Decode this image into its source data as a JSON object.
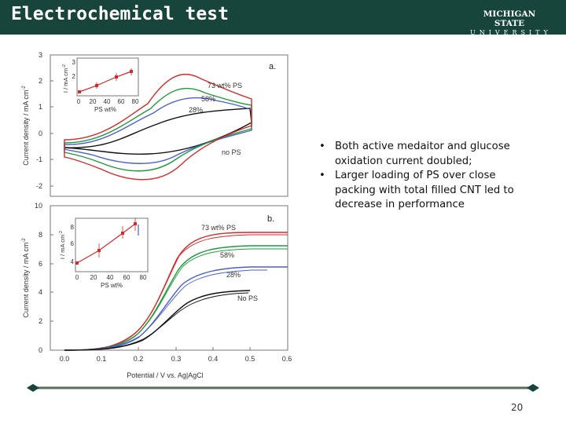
{
  "slide": {
    "title": "Electrochemical test",
    "logo": {
      "line1": "MICHIGAN STATE",
      "line2": "UNIVERSITY"
    },
    "bullets": [
      {
        "marker": "•",
        "text": "Both active medaitor and glucose oxidation current doubled;"
      },
      {
        "marker": "•",
        "text": "Larger loading of PS over close packing with total filled CNT led to decrease in performance"
      }
    ],
    "page_number": "20",
    "colors": {
      "header": "#18453b",
      "red": "#d42a2a",
      "green": "#1f9a3a",
      "blue": "#4a5fd0",
      "black": "#111111"
    }
  },
  "chart_data": [
    {
      "type": "line",
      "panel_label": "a.",
      "ylabel": "Current density / mA cm",
      "ylabel_sup": "-2",
      "y_ticks": [
        "3",
        "2",
        "1",
        "0",
        "-1",
        "-2"
      ],
      "ylim": [
        -2.2,
        3.0
      ],
      "series": [
        {
          "name": "73 wt% PS",
          "color": "#d42a2a"
        },
        {
          "name": "58%",
          "color": "#1f9a3a"
        },
        {
          "name": "28%",
          "color": "#4a5fd0"
        },
        {
          "name": "no PS",
          "color": "#111111"
        }
      ],
      "inset": {
        "xlabel": "PS wt%",
        "ylabel": "I / mA cm",
        "ylabel_sup": "-2",
        "x_ticks": [
          "0",
          "20",
          "40",
          "60",
          "80"
        ],
        "y_ticks": [
          "3",
          "2"
        ],
        "points": [
          [
            0,
            1.5
          ],
          [
            28,
            1.8
          ],
          [
            58,
            2.2
          ],
          [
            73,
            2.4
          ]
        ]
      }
    },
    {
      "type": "line",
      "panel_label": "b.",
      "xlabel": "Potential / V vs. Ag|AgCl",
      "ylabel": "Current density / mA cm",
      "ylabel_sup": "-2",
      "x_ticks": [
        "0.0",
        "0.1",
        "0.2",
        "0.3",
        "0.4",
        "0.5",
        "0.6"
      ],
      "y_ticks": [
        "10",
        "8",
        "6",
        "4",
        "2",
        "0"
      ],
      "xlim": [
        -0.05,
        0.6
      ],
      "ylim": [
        0,
        10
      ],
      "series": [
        {
          "name": "73 wt% PS",
          "color": "#d42a2a",
          "plateau": 8.0
        },
        {
          "name": "58%",
          "color": "#1f9a3a",
          "plateau": 7.1
        },
        {
          "name": "28%",
          "color": "#4a5fd0",
          "plateau": 5.7
        },
        {
          "name": "No PS",
          "color": "#111111",
          "plateau": 4.2
        }
      ],
      "inset": {
        "xlabel": "PS wt%",
        "ylabel": "I / mA cm",
        "ylabel_sup": "-2",
        "x_ticks": [
          "0",
          "20",
          "40",
          "60",
          "80"
        ],
        "y_ticks": [
          "8",
          "6",
          "4"
        ],
        "points": [
          [
            0,
            4.2
          ],
          [
            28,
            5.7
          ],
          [
            58,
            7.1
          ],
          [
            73,
            8.0
          ]
        ]
      }
    }
  ]
}
